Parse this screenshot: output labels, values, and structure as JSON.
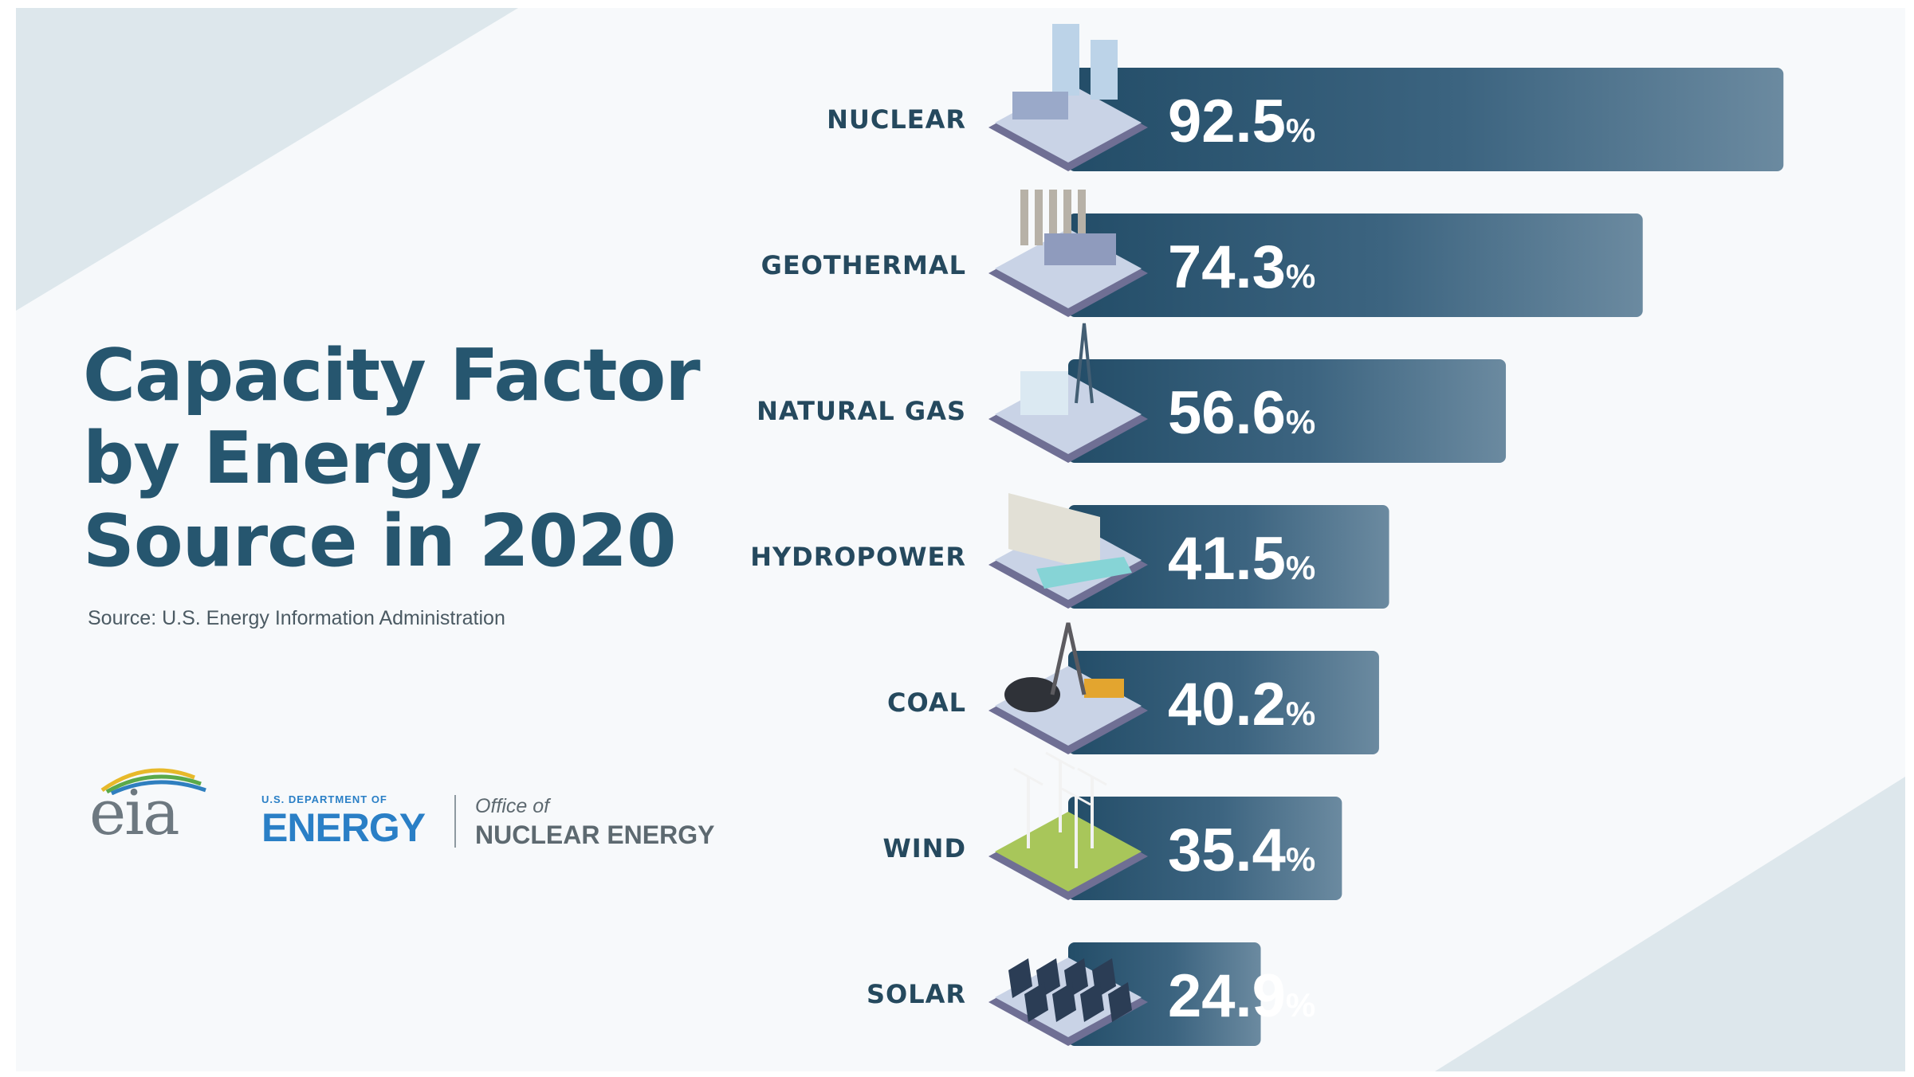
{
  "header": {
    "title_lines": [
      "Capacity Factor",
      "by Energy",
      "Source in 2020"
    ],
    "source": "Source: U.S. Energy Information Administration"
  },
  "logos": {
    "eia": "eia",
    "doe_small": "U.S. DEPARTMENT OF",
    "doe_big": "ENERGY",
    "office_line1": "Office of",
    "office_line2": "NUCLEAR ENERGY"
  },
  "colors": {
    "title": "#26566f",
    "bar_dark": "#234d68",
    "bar_light": "#6b8aa0",
    "label": "#25495e"
  },
  "chart_data": {
    "type": "bar",
    "orientation": "horizontal",
    "title": "Capacity Factor by Energy Source in 2020",
    "xlabel": "",
    "ylabel": "",
    "unit": "%",
    "xlim": [
      0,
      100
    ],
    "categories": [
      "NUCLEAR",
      "GEOTHERMAL",
      "NATURAL GAS",
      "HYDROPOWER",
      "COAL",
      "WIND",
      "SOLAR"
    ],
    "values": [
      92.5,
      74.3,
      56.6,
      41.5,
      40.2,
      35.4,
      24.9
    ],
    "value_labels": [
      "92.5",
      "74.3",
      "56.6",
      "41.5",
      "40.2",
      "35.4",
      "24.9"
    ],
    "icons": [
      "nuclear-plant-icon",
      "geothermal-plant-icon",
      "natural-gas-plant-icon",
      "hydropower-dam-icon",
      "coal-mine-icon",
      "wind-turbines-icon",
      "solar-panels-icon"
    ]
  }
}
